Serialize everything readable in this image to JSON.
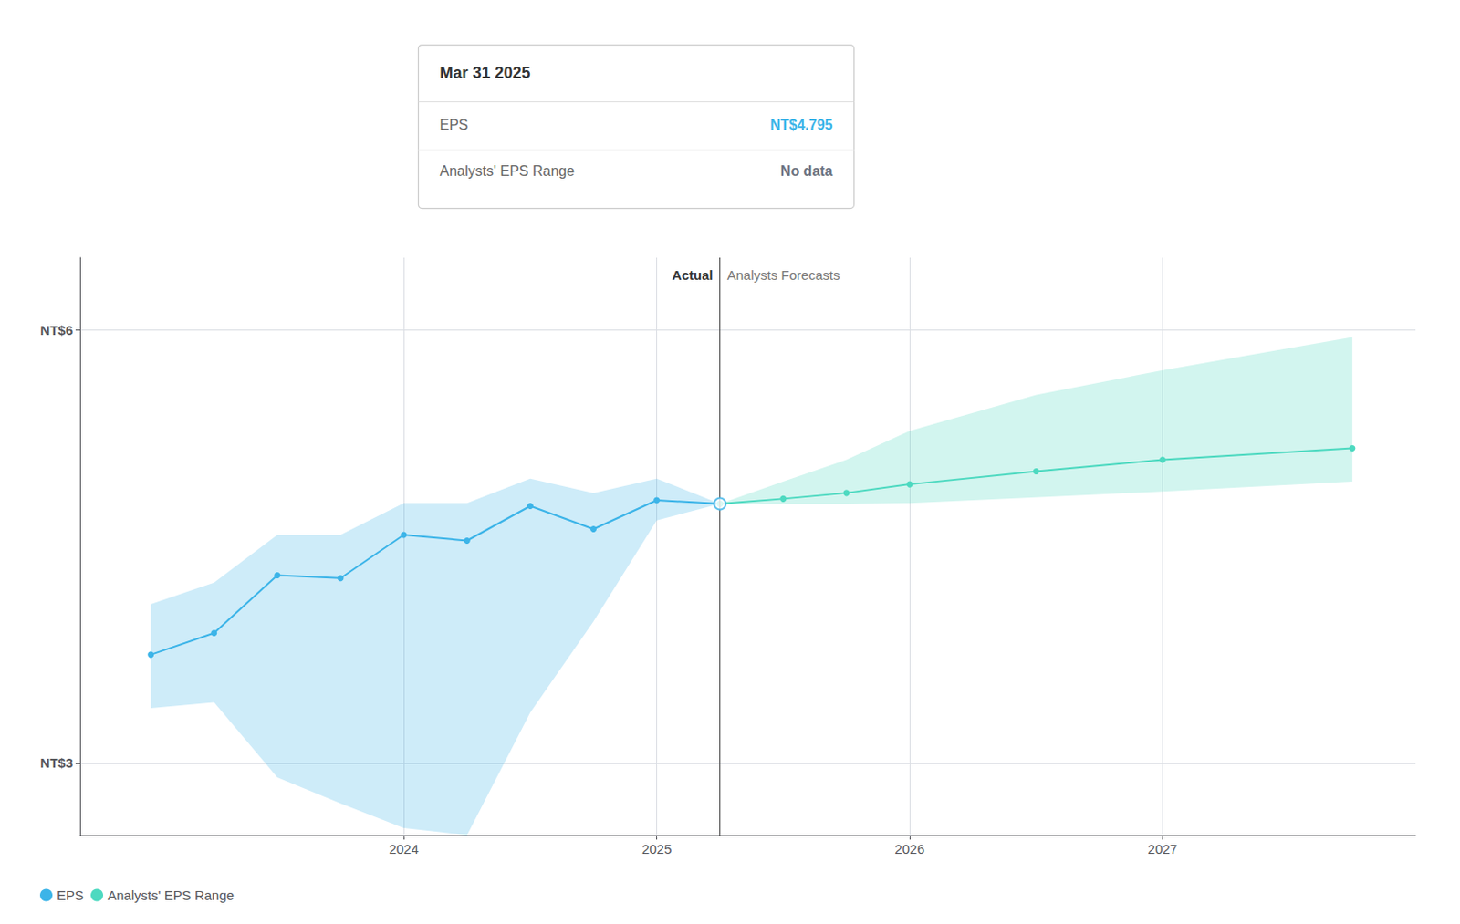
{
  "chart_data": {
    "type": "line",
    "xlim": [
      2022.72,
      2028.0
    ],
    "xticks": [
      2024.0,
      2025.0,
      2026.0,
      2027.0
    ],
    "ylim": [
      2.5,
      6.5
    ],
    "yticks": [
      {
        "value": 3.0,
        "label": "NT$3"
      },
      {
        "value": 6.0,
        "label": "NT$6"
      }
    ],
    "grid": true,
    "legend": "bottom-left",
    "series": [
      {
        "name": "EPS",
        "color": "#3cb4e8",
        "marker": "circle",
        "x": [
          2023.0,
          2023.25,
          2023.5,
          2023.75,
          2024.0,
          2024.25,
          2024.5,
          2024.75,
          2025.0,
          2025.25
        ],
        "values": [
          3.75,
          3.9,
          4.3,
          4.28,
          4.58,
          4.54,
          4.78,
          4.62,
          4.82,
          4.795
        ],
        "range_upper": [
          4.1,
          4.25,
          4.58,
          4.58,
          4.8,
          4.8,
          4.97,
          4.87,
          4.97,
          4.795
        ],
        "range_lower": [
          3.38,
          3.42,
          2.9,
          2.72,
          2.55,
          2.5,
          3.35,
          3.98,
          4.68,
          4.795
        ]
      },
      {
        "name": "Analysts' EPS Range",
        "color": "#4dd9c0",
        "marker": "circle",
        "x": [
          2025.25,
          2025.5,
          2025.75,
          2026.0,
          2026.5,
          2027.0,
          2027.75
        ],
        "values": [
          4.795,
          4.83,
          4.87,
          4.93,
          5.02,
          5.1,
          5.18
        ],
        "range_upper": [
          4.795,
          4.95,
          5.1,
          5.3,
          5.55,
          5.72,
          5.95
        ],
        "range_lower": [
          4.795,
          4.795,
          4.795,
          4.8,
          4.84,
          4.88,
          4.95
        ]
      }
    ],
    "divider": {
      "x": 2025.25,
      "left_label": "Actual",
      "right_label": "Analysts Forecasts"
    },
    "tooltip": {
      "title": "Mar 31 2025",
      "x": 2025.25,
      "y": 4.795,
      "rows": [
        {
          "label": "EPS",
          "value": 4.795,
          "value_label": "NT$4.795",
          "color": "#3cb4e8"
        },
        {
          "label": "Analysts' EPS Range",
          "value_label": "No data",
          "color": "#6b7280"
        }
      ]
    }
  }
}
